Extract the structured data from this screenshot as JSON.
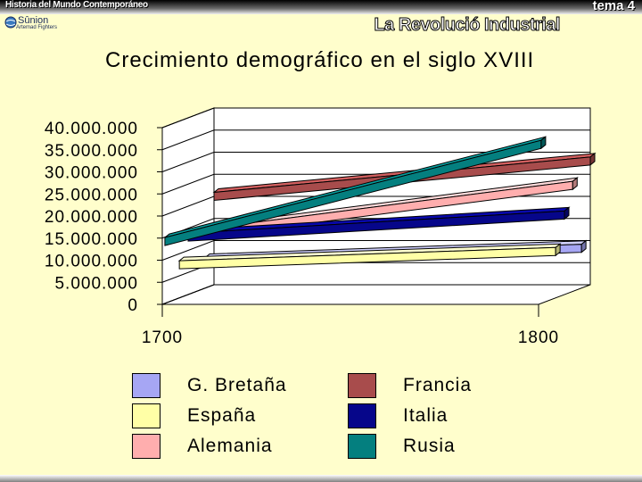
{
  "header": {
    "left_title": "Historia del Mundo Contemporáneo",
    "right_title": "tema 4",
    "logo_name": "Sûnion",
    "logo_sub": "Artemad Fighters",
    "section_title": "La Revolució Industrial"
  },
  "chart_data": {
    "type": "line",
    "title": "Crecimiento demográfico en el siglo XVIII",
    "xlabel": "",
    "ylabel": "",
    "categories": [
      "1700",
      "1800"
    ],
    "y_ticks": [
      "0",
      "5.000.000",
      "10.000.000",
      "15.000.000",
      "20.000.000",
      "25.000.000",
      "30.000.000",
      "35.000.000",
      "40.000.000"
    ],
    "ylim": [
      0,
      40000000
    ],
    "grid": true,
    "legend_position": "bottom",
    "series": [
      {
        "name": "G. Bretaña",
        "color": "#a6a6f4",
        "values": [
          6000000,
          9000000
        ]
      },
      {
        "name": "España",
        "color": "#ffffa6",
        "values": [
          7500000,
          10500000
        ]
      },
      {
        "name": "Alemania",
        "color": "#ffaeae",
        "values": [
          13000000,
          24000000
        ]
      },
      {
        "name": "Francia",
        "color": "#a84c4c",
        "values": [
          20000000,
          28000000
        ]
      },
      {
        "name": "Italia",
        "color": "#06068a",
        "values": [
          13000000,
          18000000
        ]
      },
      {
        "name": "Rusia",
        "color": "#047f7f",
        "values": [
          14000000,
          36000000
        ]
      }
    ]
  }
}
